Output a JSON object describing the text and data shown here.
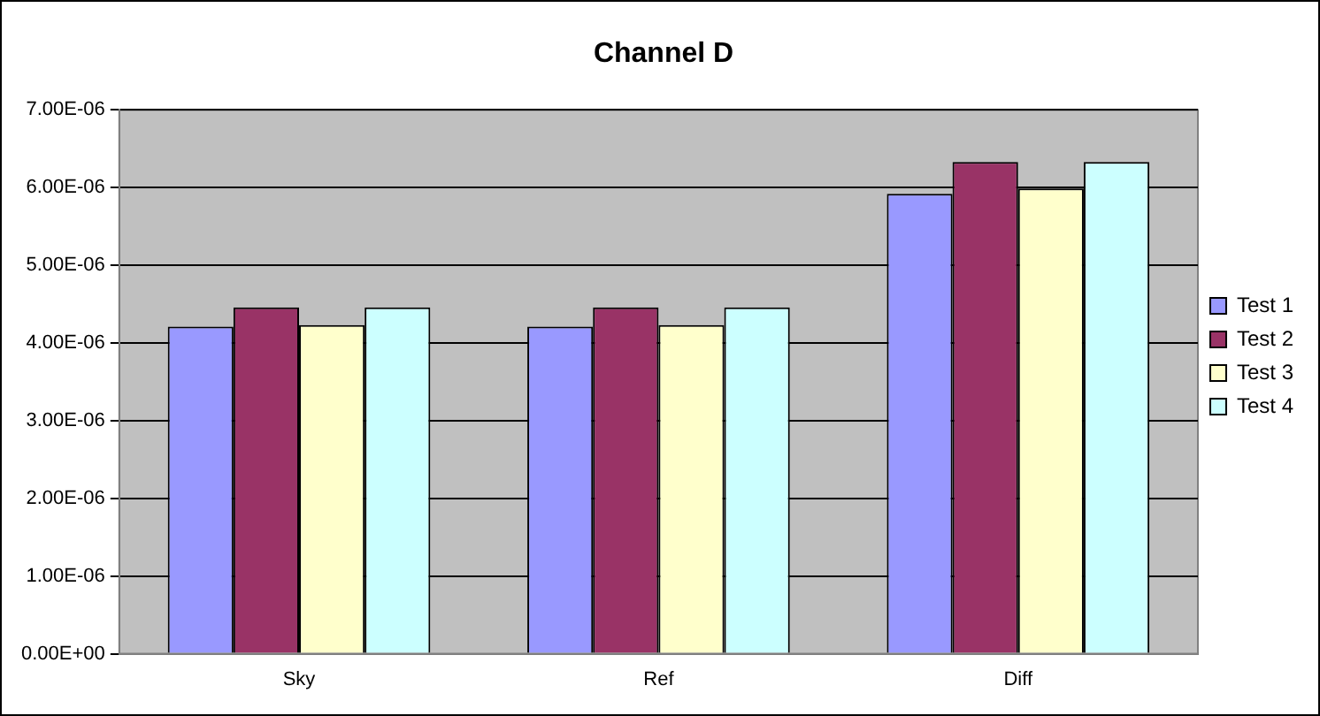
{
  "chart_data": {
    "type": "bar",
    "title": "Channel D",
    "categories": [
      "Sky",
      "Ref",
      "Diff"
    ],
    "series": [
      {
        "name": "Test 1",
        "color": "#9999ff",
        "values": [
          4.21e-06,
          4.21e-06,
          5.92e-06
        ]
      },
      {
        "name": "Test 2",
        "color": "#993366",
        "values": [
          4.46e-06,
          4.46e-06,
          6.33e-06
        ]
      },
      {
        "name": "Test 3",
        "color": "#ffffcc",
        "values": [
          4.23e-06,
          4.23e-06,
          5.99e-06
        ]
      },
      {
        "name": "Test 4",
        "color": "#ccffff",
        "values": [
          4.46e-06,
          4.46e-06,
          6.33e-06
        ]
      }
    ],
    "ylim": [
      0,
      7e-06
    ],
    "yticks": [
      {
        "value": 0,
        "label": "0.00E+00"
      },
      {
        "value": 1e-06,
        "label": "1.00E-06"
      },
      {
        "value": 2e-06,
        "label": "2.00E-06"
      },
      {
        "value": 3e-06,
        "label": "3.00E-06"
      },
      {
        "value": 4e-06,
        "label": "4.00E-06"
      },
      {
        "value": 5e-06,
        "label": "5.00E-06"
      },
      {
        "value": 6e-06,
        "label": "6.00E-06"
      },
      {
        "value": 7e-06,
        "label": "7.00E-06"
      }
    ],
    "grid": "y",
    "legend": "right"
  }
}
